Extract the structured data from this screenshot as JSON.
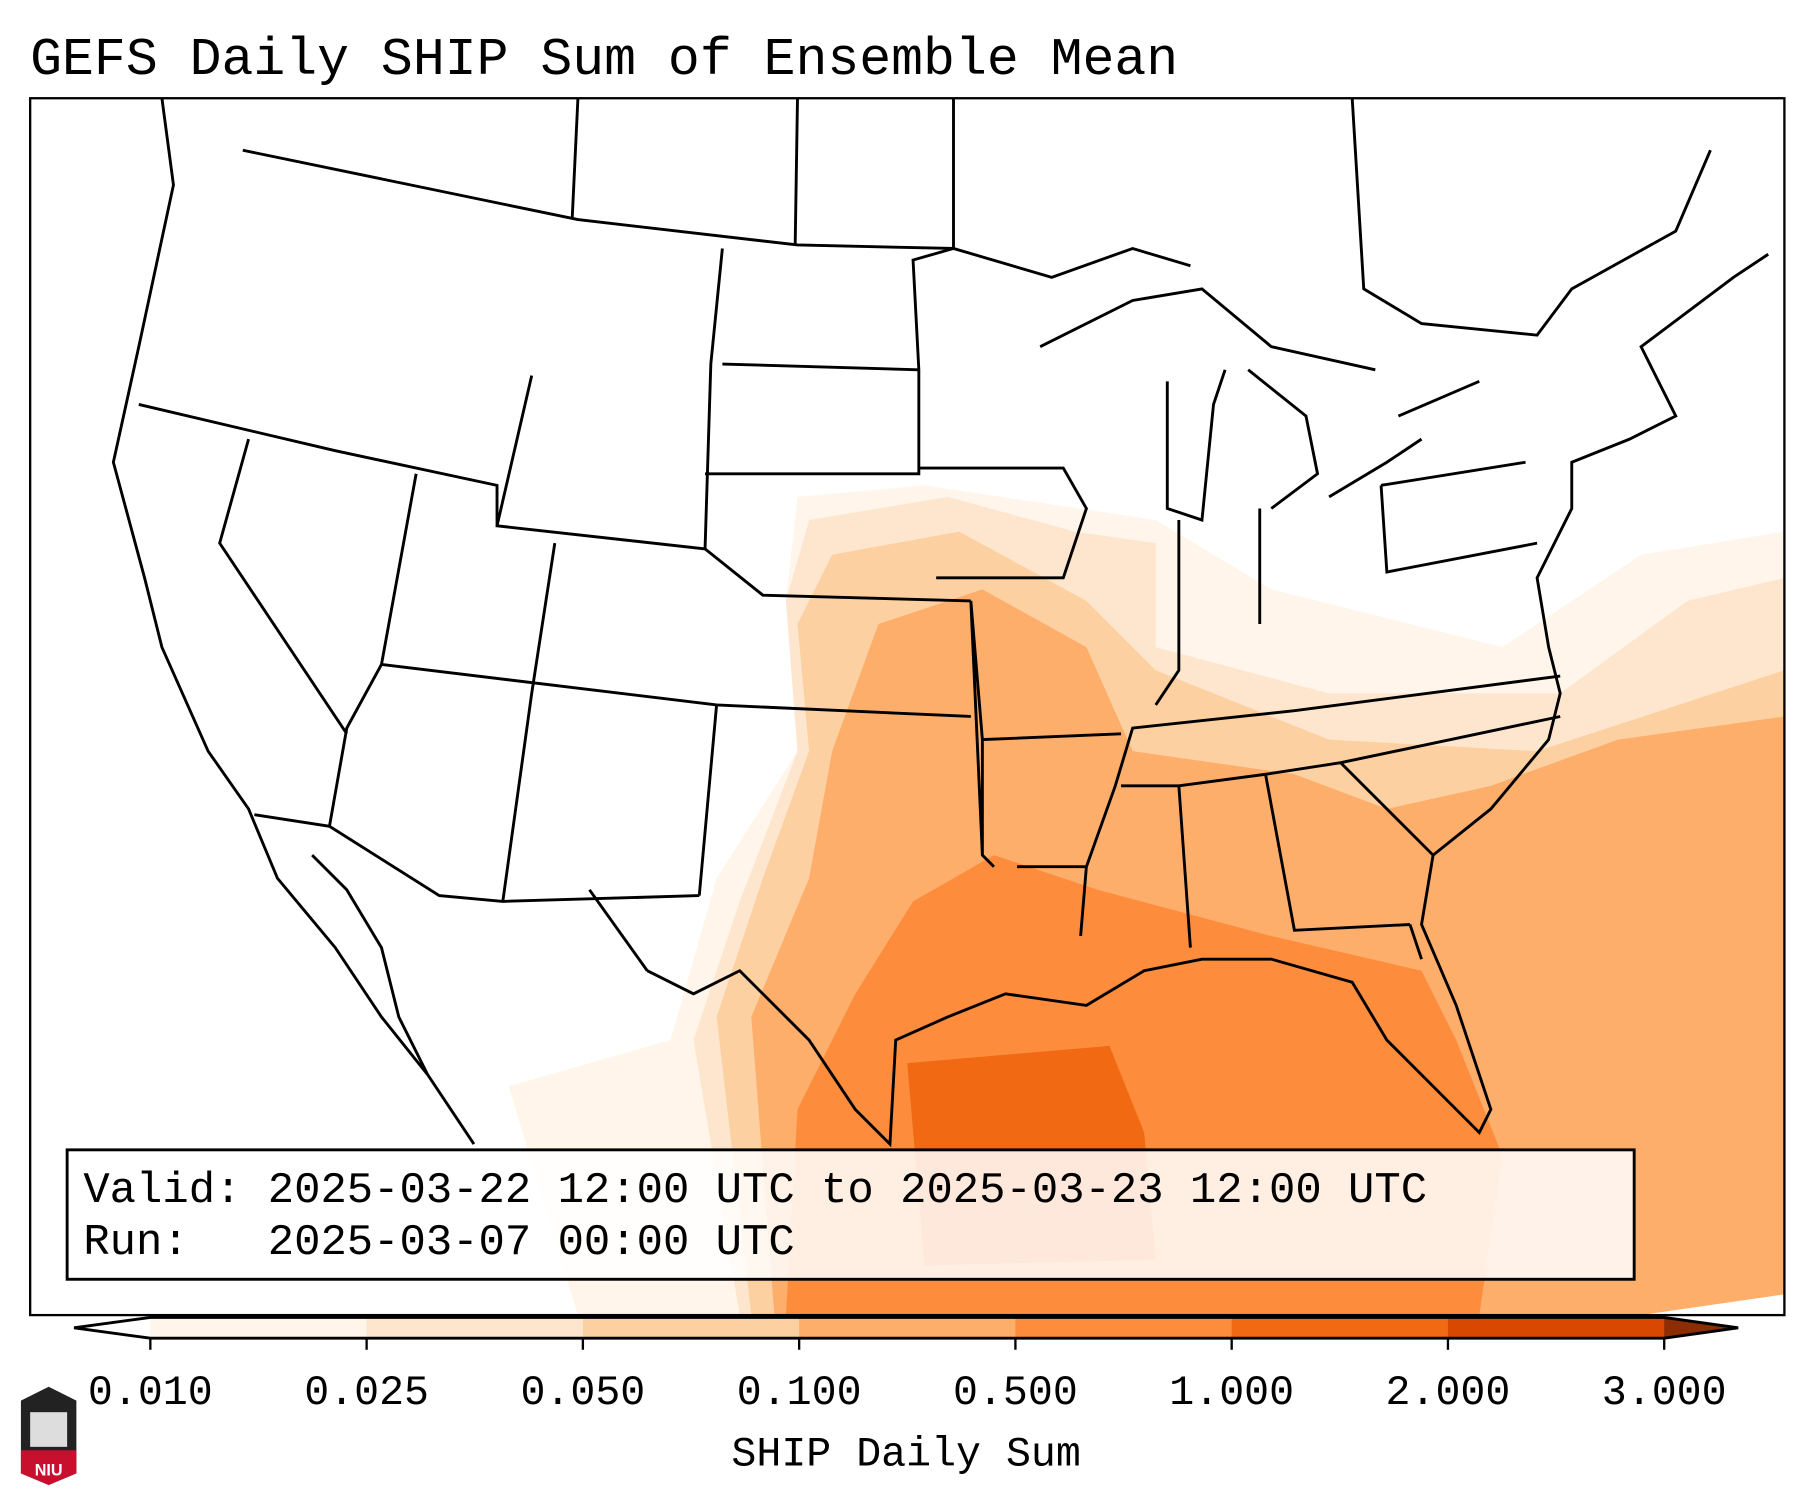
{
  "title": "GEFS Daily SHIP Sum of Ensemble Mean",
  "info_box": {
    "valid_line": "Valid: 2025-03-22 12:00 UTC to 2025-03-23 12:00 UTC",
    "run_line": "Run:   2025-03-07 00:00 UTC"
  },
  "colorbar": {
    "label": "SHIP Daily Sum",
    "ticks": [
      "0.010",
      "0.025",
      "0.050",
      "0.100",
      "0.500",
      "1.000",
      "2.000",
      "3.000"
    ],
    "colors": [
      "#fff5eb",
      "#fee6ce",
      "#fdd0a2",
      "#fdae6b",
      "#fd8d3c",
      "#f16913",
      "#d94801"
    ],
    "under_color": "#ffffff",
    "over_color": "#8c2d04"
  },
  "logo": {
    "text": "NIU",
    "color": "#c8102e"
  },
  "chart_data": {
    "type": "heatmap",
    "title": "GEFS Daily SHIP Sum of Ensemble Mean",
    "variable": "SHIP Daily Sum",
    "levels": [
      0.01,
      0.025,
      0.05,
      0.1,
      0.5,
      1.0,
      2.0,
      3.0
    ],
    "extend": "both",
    "region": "Contiguous United States",
    "max_area": "Northwestern Gulf of Mexico, off the Texas/Louisiana coast (1.0–2.0)",
    "notable_areas": [
      {
        "area": "Gulf of Mexico / Louisiana / East Texas",
        "range": "0.5–1.0"
      },
      {
        "area": "Southern Plains, Lower Mississippi Valley, Southeast",
        "range": "0.1–0.5"
      },
      {
        "area": "Missouri, Arkansas, Ohio/Tennessee Valleys",
        "range": "0.05–0.1"
      },
      {
        "area": "Central Plains, Midwest, Mid-Atlantic offshore",
        "range": "0.01–0.05"
      }
    ]
  }
}
